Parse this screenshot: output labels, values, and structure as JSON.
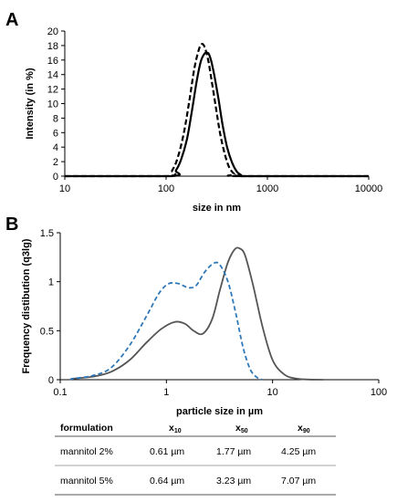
{
  "chart_data": [
    {
      "panel": "A",
      "type": "line",
      "xlabel": "size in nm",
      "ylabel": "Intensity (in %)",
      "xscale": "log",
      "xlim": [
        10,
        10000
      ],
      "ylim": [
        0,
        20
      ],
      "xticks": [
        "10",
        "100",
        "1000",
        "10000"
      ],
      "yticks": [
        "0",
        "2",
        "4",
        "6",
        "8",
        "10",
        "12",
        "14",
        "16",
        "18",
        "20"
      ],
      "grid": false,
      "series": [
        {
          "style": "solid",
          "color": "#000000",
          "x": [
            110,
            125,
            140,
            160,
            180,
            200,
            220,
            240,
            255,
            265,
            280,
            300,
            330,
            360,
            400,
            450,
            500,
            550,
            600
          ],
          "y": [
            0,
            0.8,
            2.2,
            5,
            9,
            13,
            15.8,
            16.9,
            17,
            16.8,
            15.8,
            13.8,
            10.5,
            7.2,
            4.0,
            1.8,
            0.6,
            0.15,
            0
          ]
        },
        {
          "style": "dashed",
          "color": "#000000",
          "x": [
            100,
            115,
            130,
            150,
            170,
            190,
            210,
            225,
            240,
            260,
            280,
            310,
            340,
            380,
            420,
            470,
            520
          ],
          "y": [
            0,
            0.8,
            2.5,
            6,
            10.5,
            14.8,
            17.4,
            18.2,
            17.8,
            16,
            13.4,
            9.5,
            6,
            3,
            1.2,
            0.3,
            0
          ]
        }
      ]
    },
    {
      "panel": "B",
      "type": "line",
      "xlabel": "particle size in µm",
      "ylabel": "Frequency distibution (q3lg)",
      "xscale": "log",
      "xlim": [
        0.1,
        100
      ],
      "ylim": [
        0,
        1.5
      ],
      "xticks": [
        "0.1",
        "1",
        "10",
        "100"
      ],
      "yticks": [
        "0",
        "0.5",
        "1",
        "1.5"
      ],
      "grid": false,
      "series": [
        {
          "style": "solid",
          "color": "#555555",
          "x": [
            0.13,
            0.2,
            0.3,
            0.45,
            0.65,
            0.9,
            1.2,
            1.5,
            1.8,
            2.2,
            2.7,
            3.2,
            3.8,
            4.4,
            4.9,
            5.5,
            6.5,
            8,
            10,
            13,
            17,
            22,
            30
          ],
          "y": [
            0.01,
            0.03,
            0.08,
            0.2,
            0.38,
            0.52,
            0.59,
            0.57,
            0.5,
            0.47,
            0.62,
            0.92,
            1.2,
            1.33,
            1.34,
            1.27,
            0.98,
            0.55,
            0.2,
            0.05,
            0.01,
            0.002,
            0
          ]
        },
        {
          "style": "dashed",
          "color": "#2e78b8",
          "x": [
            0.13,
            0.2,
            0.3,
            0.45,
            0.65,
            0.85,
            1.05,
            1.3,
            1.6,
            1.9,
            2.3,
            2.8,
            3.2,
            3.8,
            4.5,
            5.3,
            6.2,
            7.2,
            8
          ],
          "y": [
            0.01,
            0.04,
            0.12,
            0.35,
            0.65,
            0.88,
            0.98,
            0.98,
            0.94,
            0.96,
            1.1,
            1.19,
            1.17,
            1.0,
            0.68,
            0.32,
            0.1,
            0.02,
            0
          ]
        }
      ]
    }
  ],
  "panels": {
    "a": "A",
    "b": "B"
  },
  "table": {
    "headers": {
      "formulation": "formulation",
      "x10_base": "x",
      "x10_sub": "10",
      "x50_base": "x",
      "x50_sub": "50",
      "x90_base": "x",
      "x90_sub": "90"
    },
    "rows": [
      {
        "formulation": "mannitol 2%",
        "x10": "0.61 µm",
        "x50": "1.77 µm",
        "x90": "4.25 µm"
      },
      {
        "formulation": "mannitol 5%",
        "x10": "0.64 µm",
        "x50": "3.23 µm",
        "x90": "7.07 µm"
      }
    ]
  }
}
